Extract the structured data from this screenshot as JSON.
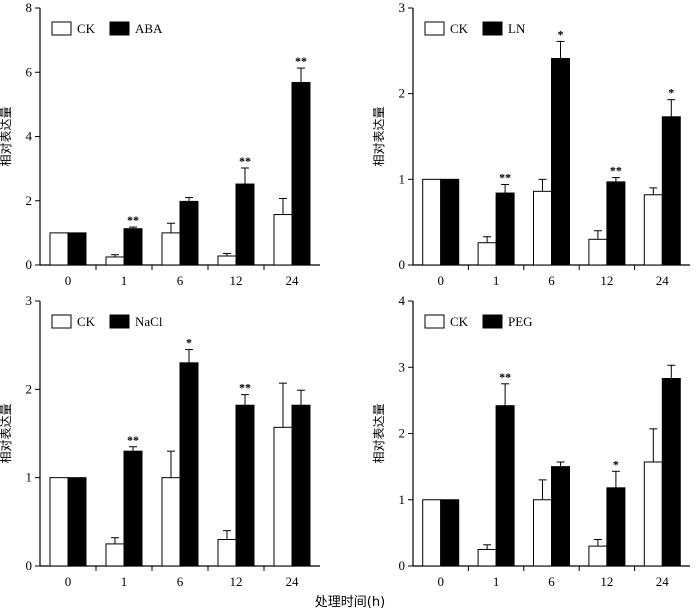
{
  "figure": {
    "xlabel": "处理时间(h)"
  },
  "chart_data": [
    {
      "type": "bar",
      "categories": [
        "0",
        "1",
        "6",
        "12",
        "24"
      ],
      "ylabel": "相对表达量",
      "ylim": [
        0,
        8
      ],
      "yticks": [
        "0",
        "2",
        "4",
        "6",
        "8"
      ],
      "legend_position": "top-left",
      "series": [
        {
          "name": "CK",
          "color": "#ffffff",
          "values": [
            1.0,
            0.25,
            1.0,
            0.28,
            1.57
          ],
          "errors": [
            0,
            0.07,
            0.3,
            0.08,
            0.5
          ]
        },
        {
          "name": "ABA",
          "color": "#000000",
          "values": [
            1.0,
            1.13,
            1.98,
            2.52,
            5.68
          ],
          "errors": [
            0,
            0.05,
            0.12,
            0.5,
            0.45
          ]
        }
      ],
      "significance": [
        "",
        "**",
        "",
        "**",
        "**"
      ]
    },
    {
      "type": "bar",
      "categories": [
        "0",
        "1",
        "6",
        "12",
        "24"
      ],
      "ylabel": "相对表达量",
      "ylim": [
        0,
        3
      ],
      "yticks": [
        "0",
        "1",
        "2",
        "3"
      ],
      "legend_position": "top-left",
      "series": [
        {
          "name": "CK",
          "color": "#ffffff",
          "values": [
            1.0,
            0.26,
            0.86,
            0.3,
            0.82
          ],
          "errors": [
            0,
            0.07,
            0.14,
            0.1,
            0.08
          ]
        },
        {
          "name": "LN",
          "color": "#000000",
          "values": [
            1.0,
            0.84,
            2.41,
            0.97,
            1.73
          ],
          "errors": [
            0,
            0.1,
            0.2,
            0.05,
            0.2
          ]
        }
      ],
      "significance": [
        "",
        "**",
        "*",
        "**",
        "*"
      ]
    },
    {
      "type": "bar",
      "categories": [
        "0",
        "1",
        "6",
        "12",
        "24"
      ],
      "ylabel": "相对表达量",
      "ylim": [
        0,
        3
      ],
      "yticks": [
        "0",
        "1",
        "2",
        "3"
      ],
      "legend_position": "top-left",
      "series": [
        {
          "name": "CK",
          "color": "#ffffff",
          "values": [
            1.0,
            0.25,
            1.0,
            0.3,
            1.57
          ],
          "errors": [
            0,
            0.07,
            0.3,
            0.1,
            0.5
          ]
        },
        {
          "name": "NaCl",
          "color": "#000000",
          "values": [
            1.0,
            1.3,
            2.3,
            1.82,
            1.82
          ],
          "errors": [
            0,
            0.05,
            0.15,
            0.12,
            0.17
          ]
        }
      ],
      "significance": [
        "",
        "**",
        "*",
        "**",
        ""
      ]
    },
    {
      "type": "bar",
      "categories": [
        "0",
        "1",
        "6",
        "12",
        "24"
      ],
      "ylabel": "相对表达量",
      "ylim": [
        0,
        4
      ],
      "yticks": [
        "0",
        "1",
        "2",
        "3",
        "4"
      ],
      "legend_position": "top-left",
      "series": [
        {
          "name": "CK",
          "color": "#ffffff",
          "values": [
            1.0,
            0.25,
            1.0,
            0.3,
            1.57
          ],
          "errors": [
            0,
            0.07,
            0.3,
            0.1,
            0.5
          ]
        },
        {
          "name": "PEG",
          "color": "#000000",
          "values": [
            1.0,
            2.42,
            1.5,
            1.18,
            2.83
          ],
          "errors": [
            0,
            0.33,
            0.07,
            0.25,
            0.2
          ]
        }
      ],
      "significance": [
        "",
        "**",
        "",
        "*",
        ""
      ]
    }
  ]
}
